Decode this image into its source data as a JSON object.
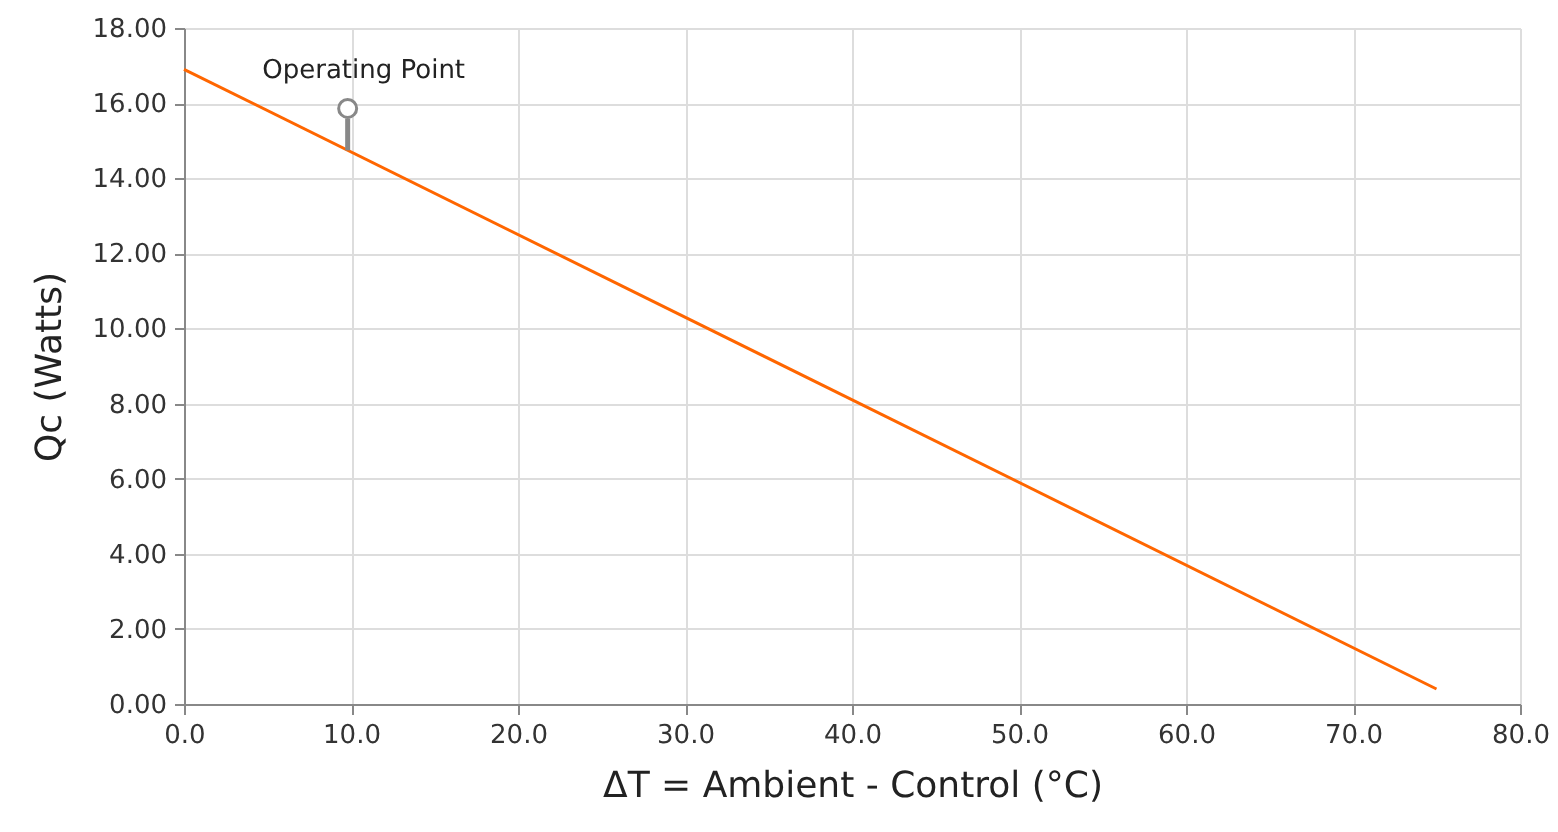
{
  "chart_data": {
    "type": "line",
    "xlabel": "ΔT = Ambient - Control (°C)",
    "ylabel": "Qc (Watts)",
    "x": [
      0,
      75
    ],
    "series": [
      {
        "color": "#ff6600",
        "values": [
          16.9,
          0.4
        ]
      }
    ],
    "xlim": [
      0,
      80
    ],
    "ylim": [
      0,
      18
    ],
    "xticks": [
      {
        "value": 0,
        "label": "0.0"
      },
      {
        "value": 10,
        "label": "10.0"
      },
      {
        "value": 20,
        "label": "20.0"
      },
      {
        "value": 30,
        "label": "30.0"
      },
      {
        "value": 40,
        "label": "40.0"
      },
      {
        "value": 50,
        "label": "50.0"
      },
      {
        "value": 60,
        "label": "60.0"
      },
      {
        "value": 70,
        "label": "70.0"
      },
      {
        "value": 80,
        "label": "80.0"
      }
    ],
    "yticks": [
      {
        "value": 0,
        "label": "0.00"
      },
      {
        "value": 2,
        "label": "2.00"
      },
      {
        "value": 4,
        "label": "4.00"
      },
      {
        "value": 6,
        "label": "6.00"
      },
      {
        "value": 8,
        "label": "8.00"
      },
      {
        "value": 10,
        "label": "10.00"
      },
      {
        "value": 12,
        "label": "12.00"
      },
      {
        "value": 14,
        "label": "14.00"
      },
      {
        "value": 16,
        "label": "16.00"
      },
      {
        "value": 18,
        "label": "18.00"
      }
    ],
    "grid": true,
    "marker": "none",
    "line_style": "solid",
    "annotations": [
      {
        "text": "Operating Point",
        "x": 9.8,
        "y": 14.74
      }
    ]
  }
}
